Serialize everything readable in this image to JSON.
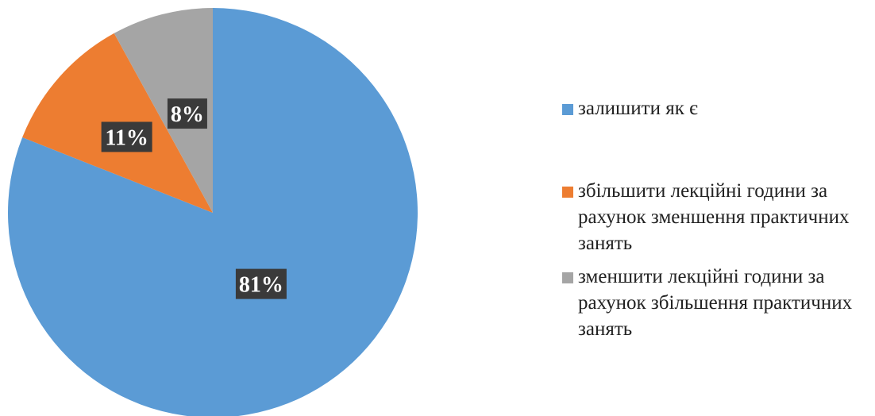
{
  "chart_data": {
    "type": "pie",
    "start_angle_deg": 0,
    "direction": "clockwise",
    "series": [
      {
        "name": "",
        "slices": [
          {
            "label": "залишити як є",
            "value": 81,
            "display": "81%",
            "color": "#5B9BD5"
          },
          {
            "label": "збільшити лекційні години за рахунок зменшення практичних занять",
            "value": 11,
            "display": "11%",
            "color": "#ED7D31"
          },
          {
            "label": "зменшити лекційні години за рахунок збільшення практичних занять",
            "value": 8,
            "display": "8%",
            "color": "#A5A5A5"
          }
        ]
      }
    ],
    "legend": {
      "position": "right",
      "entries": [
        {
          "label": "залишити як є",
          "color": "#5B9BD5"
        },
        {
          "label": "збільшити лекційні години за рахунок зменшення практичних занять",
          "color": "#ED7D31"
        },
        {
          "label": "зменшити лекційні години за рахунок збільшення практичних занять",
          "color": "#A5A5A5"
        }
      ]
    }
  }
}
